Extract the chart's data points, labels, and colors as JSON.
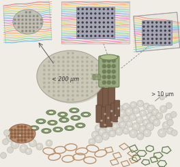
{
  "bg_color": "#f0ede6",
  "label_200": "< 200 μm",
  "label_10": "> 10 μm",
  "disk_color": "#ccc8b8",
  "disk_dot_color": "#aaa898",
  "cylinder_color": "#9aaa80",
  "cylinder_hole_color": "#6a7a50",
  "rod_color": "#7a5a48",
  "rod_dark": "#5a3a28",
  "ring_outer_color": "#9aaa80",
  "ring_inner_color": "#6a8055",
  "sphere_color": "#d8d5cc",
  "sphere_edge": "#b8b5ac",
  "wire_color": "#b8906a",
  "mesh_color": "#b88868",
  "mesh_dot_color": "#886040",
  "hex_color": "#a8b890",
  "hex_edge": "#6a8055",
  "flow_colors": [
    "#ff5555",
    "#ff8833",
    "#ffcc33",
    "#aadd33",
    "#44cc88",
    "#33bbee",
    "#4488ff",
    "#aa44ff",
    "#ff44aa",
    "#ff6655",
    "#ffaa44",
    "#88ee44"
  ],
  "panel_bg_light": "#e8e5dc",
  "panel_inner_color": "#9090a0",
  "panel_inner_dark": "#606070",
  "panel_dot_color": "#404050"
}
